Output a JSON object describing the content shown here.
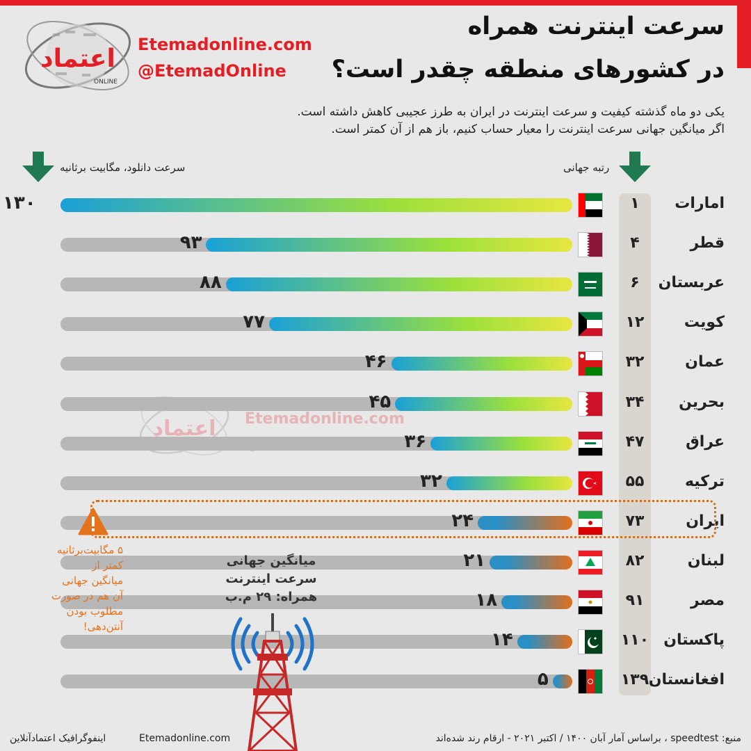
{
  "brand": {
    "site": "Etemadonline.com",
    "handle": "@EtemadOnline",
    "logo_text": "اعتماد",
    "logo_sub": "ONLINE",
    "accent_color": "#e31e24"
  },
  "header": {
    "title_line1": "سرعت اینترنت همراه",
    "title_line2": "در کشورهای منطقه چقدر است؟",
    "subtitle_line1": "یکی دو ماه گذشته کیفیت و سرعت اینترنت در ایران به طرز عجیبی کاهش داشته است.",
    "subtitle_line2": "اگر میانگین جهانی سرعت اینترنت را معیار حساب کنیم، باز هم از آن کمتر است."
  },
  "columns": {
    "speed_label": "سرعت دانلود، مگابیت برثانیه",
    "rank_label": "رتبه جهانی"
  },
  "chart_data": {
    "type": "bar",
    "orientation": "horizontal",
    "title": "سرعت اینترنت همراه در کشورهای منطقه چقدر است؟",
    "xlabel": "سرعت دانلود، مگابیت برثانیه",
    "xlim": [
      0,
      130
    ],
    "grid": false,
    "highlight_category": "ایران",
    "categories": [
      "امارات",
      "قطر",
      "عربستان",
      "کویت",
      "عمان",
      "بحرین",
      "عراق",
      "ترکیه",
      "ایران",
      "لبنان",
      "مصر",
      "پاکستان",
      "افغانستان"
    ],
    "values": [
      130,
      93,
      88,
      77,
      46,
      45,
      36,
      32,
      24,
      21,
      18,
      14,
      5
    ],
    "value_labels": [
      "۱۳۰",
      "۹۳",
      "۸۸",
      "۷۷",
      "۴۶",
      "۴۵",
      "۳۶",
      "۳۲",
      "۲۴",
      "۲۱",
      "۱۸",
      "۱۴",
      "۵"
    ],
    "ranks": [
      "۱",
      "۴",
      "۶",
      "۱۲",
      "۳۲",
      "۳۴",
      "۴۷",
      "۵۵",
      "۷۳",
      "۸۲",
      "۹۱",
      "۱۱۰",
      "۱۳۹"
    ],
    "flags": [
      "uae",
      "qatar",
      "saudi-arabia",
      "kuwait",
      "oman",
      "bahrain",
      "iraq",
      "turkey",
      "iran",
      "lebanon",
      "egypt",
      "pakistan",
      "afghanistan"
    ],
    "bar_colors": {
      "above_average": [
        "#1aa0d8",
        "#9be03c",
        "#e8e640"
      ],
      "below_average": [
        "#2a8fc4",
        "#e36f1c"
      ],
      "track": "#b7b7b7"
    },
    "annotations": {
      "world_average": [
        "میانگین جهانی",
        "سرعت اینترنت",
        "همراه: ۲۹ م.ب"
      ],
      "iran_note": [
        "۵ مگابیت‌برثانیه",
        "کمتر از",
        "میانگین جهانی",
        "آن هم در صورت",
        "مطلوب بودن",
        "آنتن‌دهی!"
      ]
    }
  },
  "footer": {
    "source": "منبع: speedtest ، براساس آمار آبان ۱۴۰۰ / اکتبر ۲۰۲۱ - ارقام رند شده‌اند",
    "site": "Etemadonline.com",
    "credit": "اینفوگرافیک اعتمادآنلاین"
  },
  "icons": [
    "logo-icon",
    "down-arrow-icon",
    "flag-icon",
    "warning-icon",
    "antenna-tower-icon"
  ]
}
